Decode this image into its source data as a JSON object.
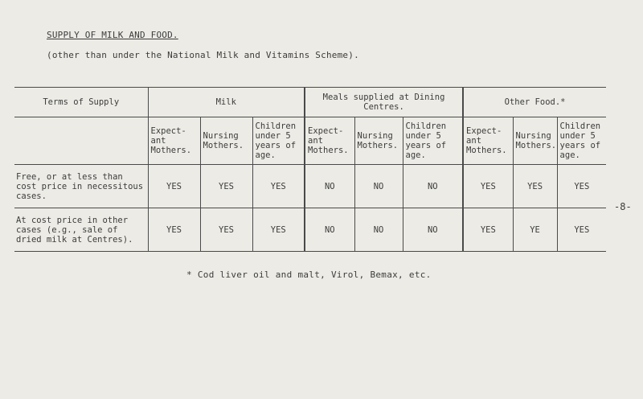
{
  "heading": "SUPPLY OF MILK AND FOOD.",
  "subheading": "(other than under the National Milk and Vitamins Scheme).",
  "table": {
    "terms_header": "Terms of Supply",
    "groups": [
      "Milk",
      "Meals supplied at Dining Centres.",
      "Other Food.*"
    ],
    "subcols": [
      "Expect-ant Mothers.",
      "Nursing Mothers.",
      "Children under 5 years of age."
    ],
    "rows": [
      {
        "label": "Free, or at less than cost price in necessitous cases.",
        "values": [
          "YES",
          "YES",
          "YES",
          "NO",
          "NO",
          "NO",
          "YES",
          "YES",
          "YES"
        ]
      },
      {
        "label": "At cost price in other cases (e.g., sale of dried milk at Centres).",
        "values": [
          "YES",
          "YES",
          "YES",
          "NO",
          "NO",
          "NO",
          "YES",
          "YE",
          "YES"
        ]
      }
    ]
  },
  "page_number": "-8-",
  "footnote": "* Cod liver oil and malt, Virol, Bemax, etc."
}
